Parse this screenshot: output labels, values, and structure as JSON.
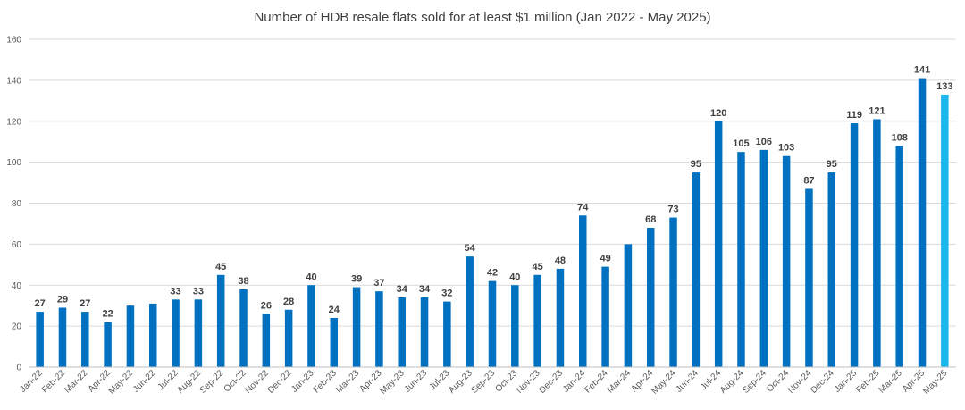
{
  "chart_data": {
    "type": "bar",
    "title": "Number of HDB resale flats sold for at least $1 million (Jan 2022 -  May 2025)",
    "xlabel": "",
    "ylabel": "",
    "ylim": [
      0,
      160
    ],
    "yticks": [
      0,
      20,
      40,
      60,
      80,
      100,
      120,
      140,
      160
    ],
    "grid": true,
    "legend": "none",
    "colors": {
      "bar": "#0070c0",
      "highlight": "#1cb5ec"
    },
    "highlight_last": true,
    "categories": [
      "Jan-22",
      "Feb-22",
      "Mar-22",
      "Apr-22",
      "May-22",
      "Jun-22",
      "Jul-22",
      "Aug-22",
      "Sep-22",
      "Oct-22",
      "Nov-22",
      "Dec-22",
      "Jan-23",
      "Feb-23",
      "Mar-23",
      "Apr-23",
      "May-23",
      "Jun-23",
      "Jul-23",
      "Aug-23",
      "Sep-23",
      "Oct-23",
      "Nov-23",
      "Dec-23",
      "Jan-24",
      "Feb-24",
      "Mar-24",
      "Apr-24",
      "May-24",
      "Jun-24",
      "Jul-24",
      "Aug-24",
      "Sep-24",
      "Oct-24",
      "Nov-24",
      "Dec-24",
      "Jan-25",
      "Feb-25",
      "Mar-25",
      "Apr-25",
      "May-25"
    ],
    "values": [
      27,
      29,
      27,
      22,
      30,
      31,
      33,
      33,
      45,
      38,
      26,
      28,
      40,
      24,
      39,
      37,
      34,
      34,
      32,
      54,
      42,
      40,
      45,
      48,
      74,
      49,
      60,
      68,
      73,
      95,
      120,
      105,
      106,
      103,
      87,
      95,
      119,
      121,
      108,
      141,
      133
    ],
    "data_labels": [
      "27",
      "29",
      "27",
      "22",
      "",
      "",
      "33",
      "33",
      "45",
      "38",
      "26",
      "28",
      "40",
      "24",
      "39",
      "37",
      "34",
      "34",
      "32",
      "54",
      "42",
      "40",
      "45",
      "48",
      "74",
      "49",
      "",
      "68",
      "73",
      "95",
      "120",
      "105",
      "106",
      "103",
      "87",
      "95",
      "119",
      "121",
      "108",
      "141",
      "133"
    ]
  }
}
